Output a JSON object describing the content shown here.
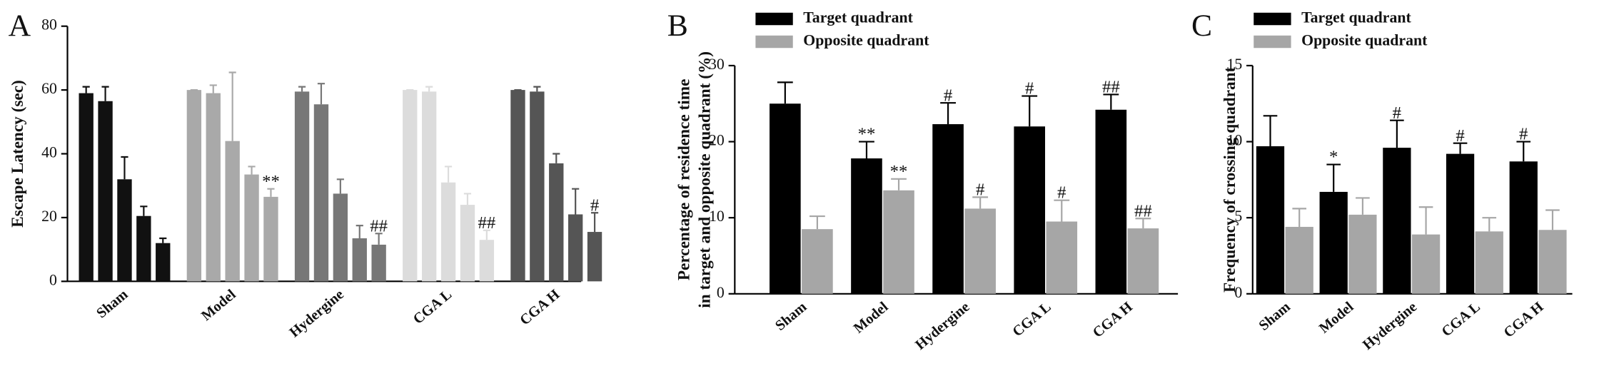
{
  "chart_data": [
    {
      "type": "bar_groups",
      "panel": "A",
      "ylabel": [
        "Escape Latency (sec)"
      ],
      "ylim": [
        0,
        80
      ],
      "yticks": [
        0,
        20,
        40,
        60,
        80
      ],
      "groups": [
        {
          "label": "Sham",
          "color": "#111111",
          "values": [
            59,
            56.5,
            32,
            20.5,
            12
          ],
          "errors": [
            2,
            4.5,
            7,
            3,
            1.5
          ],
          "annotations": [
            null,
            null,
            null,
            null,
            null
          ]
        },
        {
          "label": "Model",
          "color": "#a9a9a9",
          "values": [
            60,
            59,
            44,
            33.5,
            26.5
          ],
          "errors": [
            0,
            2.5,
            21.5,
            2.5,
            2.5
          ],
          "annotations": [
            null,
            null,
            null,
            null,
            "**"
          ]
        },
        {
          "label": "Hydergine",
          "color": "#777777",
          "values": [
            59.5,
            55.5,
            27.5,
            13.5,
            11.5
          ],
          "errors": [
            1.5,
            6.5,
            4.5,
            4,
            3.5
          ],
          "annotations": [
            null,
            null,
            null,
            null,
            "##"
          ]
        },
        {
          "label": "CGA L",
          "color": "#dcdcdc",
          "values": [
            60,
            59.5,
            31,
            24,
            13
          ],
          "errors": [
            0,
            1.5,
            5,
            3.5,
            3
          ],
          "annotations": [
            null,
            null,
            null,
            null,
            "##"
          ]
        },
        {
          "label": "CGA H",
          "color": "#555555",
          "values": [
            60,
            59.5,
            37,
            21,
            15.5
          ],
          "errors": [
            0,
            1.5,
            3,
            8,
            6
          ],
          "annotations": [
            null,
            null,
            null,
            null,
            "#"
          ]
        }
      ]
    },
    {
      "type": "bar",
      "panel": "B",
      "ylabel": [
        "Percentage of residence time",
        "in target and opposite quadrant (%)"
      ],
      "ylim": [
        0,
        30
      ],
      "yticks": [
        0,
        10,
        20,
        30
      ],
      "categories": [
        "Sham",
        "Model",
        "Hydergine",
        "CGA L",
        "CGA H"
      ],
      "series": [
        {
          "name": "Target quadrant",
          "color": "#000000",
          "values": [
            25,
            17.8,
            22.3,
            22,
            24.2
          ],
          "errors": [
            2.8,
            2.2,
            2.8,
            4,
            2
          ],
          "annotations": [
            null,
            "**",
            "#",
            "#",
            "##"
          ]
        },
        {
          "name": "Opposite quadrant",
          "color": "#a6a6a6",
          "values": [
            8.5,
            13.6,
            11.2,
            9.5,
            8.6
          ],
          "errors": [
            1.7,
            1.5,
            1.5,
            2.8,
            1.3
          ],
          "annotations": [
            null,
            "**",
            "#",
            "#",
            "##"
          ]
        }
      ]
    },
    {
      "type": "bar",
      "panel": "C",
      "ylabel": [
        "Frequency of crossing quadrant"
      ],
      "ylim": [
        0,
        15
      ],
      "yticks": [
        0,
        5,
        10,
        15
      ],
      "categories": [
        "Sham",
        "Model",
        "Hydergine",
        "CGA L",
        "CGA H"
      ],
      "series": [
        {
          "name": "Target quadrant",
          "color": "#000000",
          "values": [
            9.7,
            6.7,
            9.6,
            9.2,
            8.7
          ],
          "errors": [
            2,
            1.8,
            1.8,
            0.7,
            1.3
          ],
          "annotations": [
            null,
            "*",
            "#",
            "#",
            "#"
          ]
        },
        {
          "name": "Opposite quadrant",
          "color": "#a6a6a6",
          "values": [
            4.4,
            5.2,
            3.9,
            4.1,
            4.2
          ],
          "errors": [
            1.2,
            1.1,
            1.8,
            0.9,
            1.3
          ],
          "annotations": [
            null,
            null,
            null,
            null,
            null
          ]
        }
      ]
    }
  ]
}
